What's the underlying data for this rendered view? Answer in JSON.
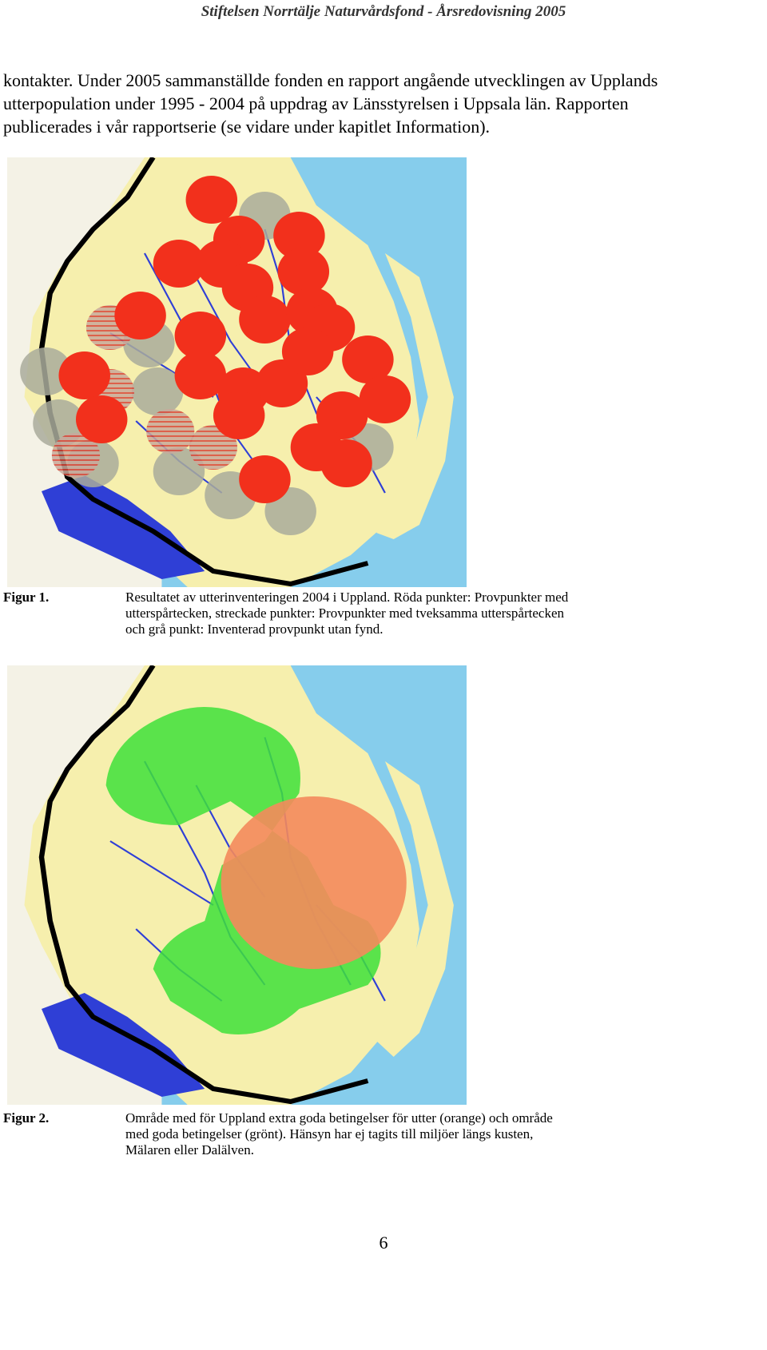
{
  "header": "Stiftelsen Norrtälje Naturvårdsfond - Årsredovisning 2005",
  "paragraph": [
    "kontakter. Under 2005 sammanställde fonden en rapport angående utvecklingen av Upplands",
    "utterpopulation under 1995 - 2004 på uppdrag av Länsstyrelsen i Uppsala län. Rapporten",
    "publicerades i vår rapportserie (se vidare under kapitlet Information)."
  ],
  "figures": [
    {
      "label": "Figur 1.",
      "caption": [
        "Resultatet av utterinventeringen 2004 i Uppland. Röda punkter: Provpunkter med",
        "utterspårtecken, streckade punkter: Provpunkter med tveksamma utterspårtecken",
        "och grå punkt: Inventerad provpunkt utan fynd."
      ]
    },
    {
      "label": "Figur 2.",
      "caption": [
        "Område med för Uppland extra goda betingelser för utter (orange) och område",
        "med goda betingelser (grönt). Hänsyn har ej tagits till miljöer längs kusten,",
        "Mälaren eller Dalälven."
      ]
    }
  ],
  "page_number": "6"
}
